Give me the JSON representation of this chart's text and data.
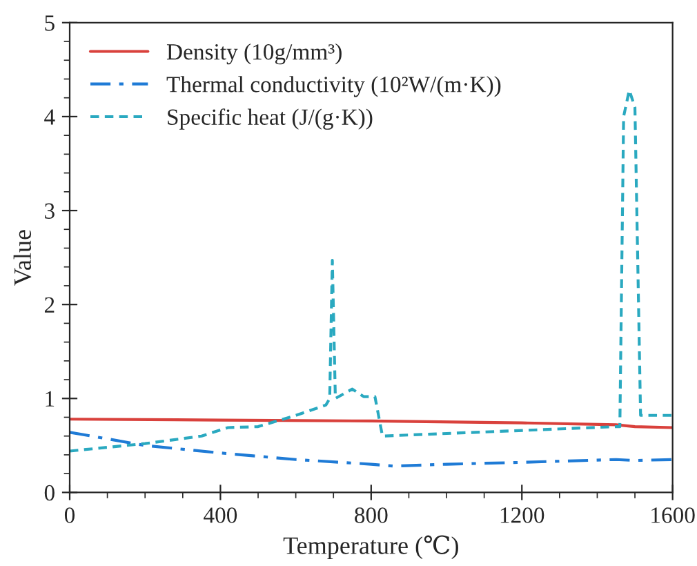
{
  "chart_data": {
    "type": "line",
    "xlabel": "Temperature (℃)",
    "ylabel": "Value",
    "xlim": [
      0,
      1600
    ],
    "xticks": [
      0,
      400,
      800,
      1200,
      1600
    ],
    "ylim": [
      0,
      5
    ],
    "yticks": [
      0,
      1,
      2,
      3,
      4,
      5
    ],
    "grid": false,
    "legend": "top left",
    "series": [
      {
        "name": "Density (10g/mm³)",
        "color": "#d9413c",
        "line_style": "solid",
        "x": [
          0,
          400,
          800,
          1200,
          1450,
          1500,
          1600
        ],
        "values": [
          0.78,
          0.77,
          0.76,
          0.74,
          0.72,
          0.7,
          0.69
        ]
      },
      {
        "name": "Thermal conductivity (10²W/(m·K))",
        "color": "#1f7bd6",
        "line_style": "dashdot",
        "x": [
          0,
          200,
          400,
          600,
          800,
          860,
          1000,
          1200,
          1450,
          1500,
          1600
        ],
        "values": [
          0.64,
          0.5,
          0.42,
          0.35,
          0.3,
          0.28,
          0.3,
          0.32,
          0.35,
          0.34,
          0.35
        ]
      },
      {
        "name": "Specific heat (J/(g·K))",
        "color": "#2aa9c0",
        "line_style": "dashed",
        "x": [
          0,
          200,
          350,
          420,
          500,
          600,
          680,
          690,
          697,
          705,
          750,
          780,
          810,
          830,
          1450,
          1460,
          1470,
          1485,
          1500,
          1515,
          1600
        ],
        "values": [
          0.44,
          0.52,
          0.6,
          0.69,
          0.7,
          0.82,
          0.93,
          1.0,
          2.47,
          1.0,
          1.1,
          1.02,
          1.02,
          0.6,
          0.7,
          0.7,
          4.0,
          4.28,
          4.1,
          0.82,
          0.82
        ]
      }
    ]
  }
}
